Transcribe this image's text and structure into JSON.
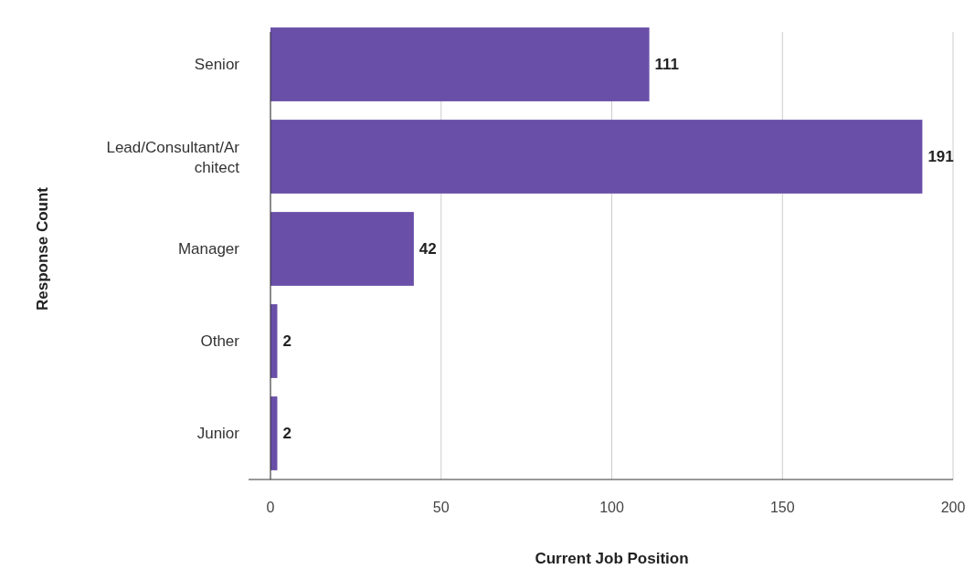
{
  "chart_data": {
    "type": "bar",
    "orientation": "horizontal",
    "xlabel": "Current Job Position",
    "ylabel": "Response Count",
    "categories": [
      "Senior",
      "Lead/Consultant/Architect",
      "Manager",
      "Other",
      "Junior"
    ],
    "values": [
      111,
      191,
      42,
      2,
      2
    ],
    "color": "#6a4fa8",
    "xlim": [
      0,
      200
    ],
    "xticks": [
      0,
      50,
      100,
      150,
      200
    ],
    "grid": "x",
    "data_labels": true
  }
}
